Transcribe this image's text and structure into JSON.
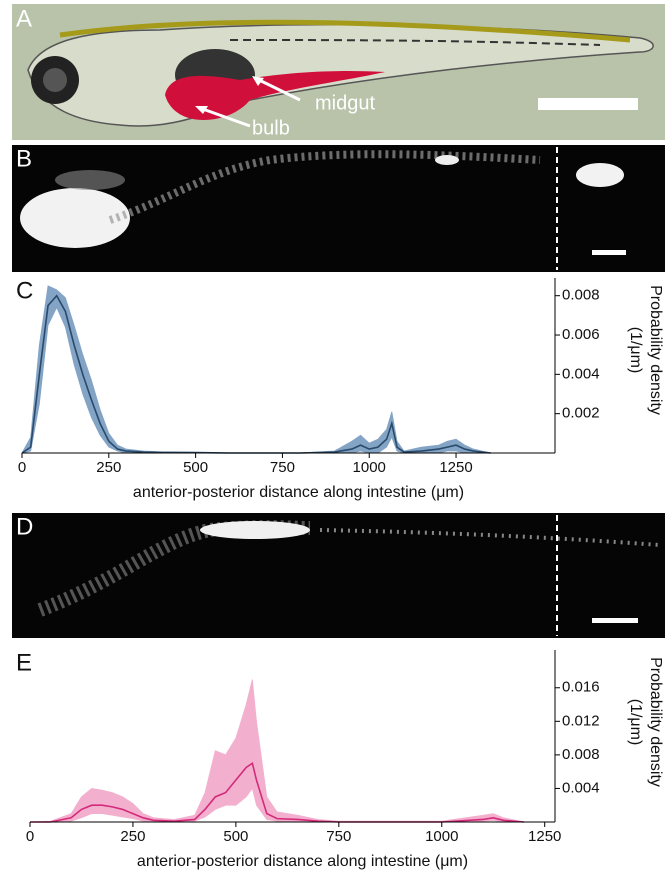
{
  "images": {
    "A": {
      "label": "A",
      "annotations": [
        "midgut",
        "bulb"
      ]
    },
    "B": {
      "label": "B"
    },
    "D": {
      "label": "D"
    }
  },
  "chart_data": [
    {
      "type": "line",
      "label": "C",
      "xlabel": "anterior-posterior distance along intestine (μm)",
      "ylabel": [
        "Probability density",
        "(1/μm)"
      ],
      "x": [
        0,
        25,
        50,
        75,
        100,
        125,
        150,
        175,
        200,
        225,
        250,
        275,
        300,
        350,
        400,
        500,
        600,
        700,
        800,
        900,
        950,
        975,
        1000,
        1025,
        1050,
        1065,
        1080,
        1100,
        1150,
        1200,
        1225,
        1250,
        1275,
        1300,
        1350
      ],
      "series": [
        {
          "color": "#2a4a6b",
          "band_color": "#6f95bd",
          "values": [
            0,
            0.0003,
            0.004,
            0.0075,
            0.008,
            0.0072,
            0.0055,
            0.004,
            0.0027,
            0.0015,
            0.0006,
            0.0002,
            0.0001,
            5e-05,
            3e-05,
            2e-05,
            0,
            0,
            0,
            5e-05,
            0.0002,
            0.0004,
            0.0002,
            0.0003,
            0.0007,
            0.0015,
            0.0003,
            5e-05,
            0.0001,
            0.0002,
            0.0003,
            0.0004,
            0.0002,
            0.0001,
            0
          ],
          "upper": [
            0,
            0.0008,
            0.0055,
            0.0085,
            0.0083,
            0.0079,
            0.0065,
            0.005,
            0.0037,
            0.0022,
            0.001,
            0.0004,
            0.0002,
            0.0001,
            6e-05,
            4e-05,
            0,
            0,
            0,
            0.0001,
            0.0006,
            0.0009,
            0.0005,
            0.0007,
            0.0012,
            0.0021,
            0.0006,
            0.0001,
            0.0003,
            0.0004,
            0.0006,
            0.0007,
            0.0004,
            0.0002,
            0
          ],
          "lower": [
            0,
            0.0001,
            0.0025,
            0.0065,
            0.0074,
            0.0064,
            0.0045,
            0.003,
            0.0018,
            0.0009,
            0.0003,
            0.0001,
            0,
            0,
            0,
            0,
            0,
            0,
            0,
            0,
            0,
            0.0001,
            0,
            0,
            0.0003,
            0.0008,
            0.0001,
            0,
            0,
            0,
            0.0001,
            0.0001,
            0,
            0,
            0
          ]
        }
      ],
      "xlim": [
        0,
        1535
      ],
      "ylim": [
        0,
        0.0089
      ],
      "xticks": [
        0,
        250,
        500,
        750,
        1000,
        1250
      ],
      "yticks": [
        0.002,
        0.004,
        0.006,
        0.008
      ]
    },
    {
      "type": "line",
      "label": "E",
      "xlabel": "anterior-posterior distance along intestine (μm)",
      "ylabel": [
        "Probability density",
        "(1/μm)"
      ],
      "x": [
        0,
        50,
        100,
        125,
        150,
        175,
        200,
        225,
        250,
        275,
        300,
        350,
        400,
        425,
        450,
        475,
        500,
        525,
        540,
        550,
        575,
        600,
        650,
        700,
        750,
        800,
        900,
        1000,
        1100,
        1125,
        1150,
        1200
      ],
      "series": [
        {
          "color": "#d42a7a",
          "band_color": "#f2a3c6",
          "values": [
            0,
            0,
            0.0005,
            0.0015,
            0.002,
            0.002,
            0.0018,
            0.0015,
            0.001,
            0.0005,
            0.0002,
            0.0001,
            0.0003,
            0.0015,
            0.003,
            0.0035,
            0.005,
            0.0065,
            0.007,
            0.005,
            0.001,
            0.0004,
            0.0003,
            0.0001,
            0,
            0,
            0,
            0,
            0.0003,
            0.0005,
            0.0002,
            0
          ],
          "upper": [
            0,
            0.0001,
            0.001,
            0.003,
            0.004,
            0.0038,
            0.0035,
            0.003,
            0.0022,
            0.001,
            0.0005,
            0.0003,
            0.0008,
            0.0035,
            0.0085,
            0.008,
            0.01,
            0.014,
            0.017,
            0.012,
            0.003,
            0.0012,
            0.0008,
            0.0003,
            0.0001,
            0.0001,
            0.0001,
            0.0001,
            0.0008,
            0.001,
            0.0005,
            0
          ],
          "lower": [
            0,
            0,
            0.0001,
            0.0005,
            0.001,
            0.001,
            0.0008,
            0.0006,
            0.0004,
            0.0001,
            0,
            0,
            0.0001,
            0.0006,
            0.0015,
            0.002,
            0.002,
            0.003,
            0.004,
            0.002,
            0.0003,
            0.0001,
            0,
            0,
            0,
            0,
            0,
            0,
            0.0001,
            0.0002,
            0,
            0
          ]
        }
      ],
      "xlim": [
        0,
        1275
      ],
      "ylim": [
        0,
        0.0205
      ],
      "xticks": [
        0,
        250,
        500,
        750,
        1000,
        1250
      ],
      "yticks": [
        0.004,
        0.008,
        0.012,
        0.016
      ]
    }
  ]
}
